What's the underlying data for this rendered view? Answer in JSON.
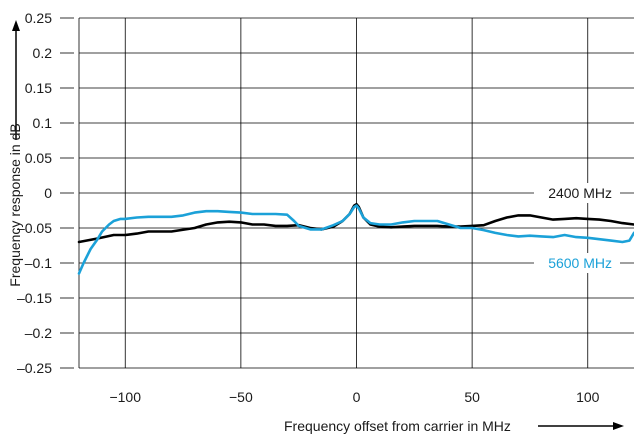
{
  "chart_data": {
    "type": "line",
    "xlabel": "Frequency offset from carrier in MHz",
    "ylabel": "Frequency response in dB",
    "xlim": [
      -120,
      120
    ],
    "ylim": [
      -0.25,
      0.25
    ],
    "x_ticks": [
      -100,
      -50,
      0,
      50,
      100
    ],
    "x_tick_labels": [
      "−100",
      "−50",
      "0",
      "50",
      "100"
    ],
    "y_ticks": [
      0.25,
      0.2,
      0.15,
      0.1,
      0.05,
      0,
      -0.05,
      -0.1,
      -0.15,
      -0.2,
      -0.25
    ],
    "y_tick_labels": [
      "0.25",
      "0.2",
      "0.15",
      "0.1",
      "0.05",
      "0",
      "–0.05",
      "–0.1",
      "–0.15",
      "–0.2",
      "–0.25"
    ],
    "grid": true,
    "series": [
      {
        "name": "2400 MHz",
        "color": "#000000",
        "x": [
          -120,
          -112,
          -105,
          -100,
          -95,
          -90,
          -80,
          -70,
          -65,
          -60,
          -55,
          -50,
          -45,
          -40,
          -35,
          -30,
          -25,
          -20,
          -15,
          -10,
          -6,
          -3,
          -1,
          0,
          1,
          3,
          6,
          10,
          15,
          20,
          25,
          30,
          35,
          40,
          45,
          50,
          55,
          60,
          65,
          70,
          75,
          80,
          85,
          90,
          95,
          100,
          105,
          110,
          115,
          120
        ],
        "y": [
          -0.07,
          -0.065,
          -0.06,
          -0.06,
          -0.058,
          -0.055,
          -0.055,
          -0.05,
          -0.045,
          -0.042,
          -0.041,
          -0.042,
          -0.045,
          -0.045,
          -0.047,
          -0.047,
          -0.046,
          -0.05,
          -0.052,
          -0.048,
          -0.04,
          -0.03,
          -0.018,
          -0.016,
          -0.02,
          -0.035,
          -0.045,
          -0.048,
          -0.049,
          -0.048,
          -0.047,
          -0.047,
          -0.047,
          -0.048,
          -0.048,
          -0.047,
          -0.046,
          -0.04,
          -0.035,
          -0.032,
          -0.032,
          -0.035,
          -0.038,
          -0.037,
          -0.036,
          -0.037,
          -0.038,
          -0.04,
          -0.043,
          -0.045
        ]
      },
      {
        "name": "5600 MHz",
        "color": "#1ba1d8",
        "x": [
          -120,
          -118,
          -115,
          -112,
          -110,
          -107,
          -105,
          -102,
          -100,
          -95,
          -90,
          -85,
          -80,
          -75,
          -70,
          -65,
          -60,
          -55,
          -50,
          -45,
          -40,
          -35,
          -30,
          -27,
          -25,
          -20,
          -15,
          -10,
          -6,
          -3,
          -1,
          0,
          1,
          3,
          6,
          10,
          15,
          20,
          25,
          30,
          35,
          40,
          45,
          50,
          55,
          60,
          65,
          70,
          75,
          80,
          85,
          90,
          95,
          100,
          105,
          110,
          115,
          118,
          120
        ],
        "y": [
          -0.115,
          -0.1,
          -0.08,
          -0.066,
          -0.055,
          -0.045,
          -0.04,
          -0.037,
          -0.037,
          -0.035,
          -0.034,
          -0.034,
          -0.034,
          -0.032,
          -0.028,
          -0.026,
          -0.026,
          -0.027,
          -0.028,
          -0.03,
          -0.03,
          -0.03,
          -0.031,
          -0.04,
          -0.047,
          -0.052,
          -0.052,
          -0.046,
          -0.04,
          -0.03,
          -0.02,
          -0.018,
          -0.022,
          -0.035,
          -0.043,
          -0.045,
          -0.045,
          -0.042,
          -0.04,
          -0.04,
          -0.04,
          -0.045,
          -0.05,
          -0.05,
          -0.053,
          -0.057,
          -0.06,
          -0.062,
          -0.061,
          -0.062,
          -0.063,
          -0.06,
          -0.063,
          -0.064,
          -0.066,
          -0.068,
          -0.07,
          -0.068,
          -0.057
        ]
      }
    ]
  }
}
